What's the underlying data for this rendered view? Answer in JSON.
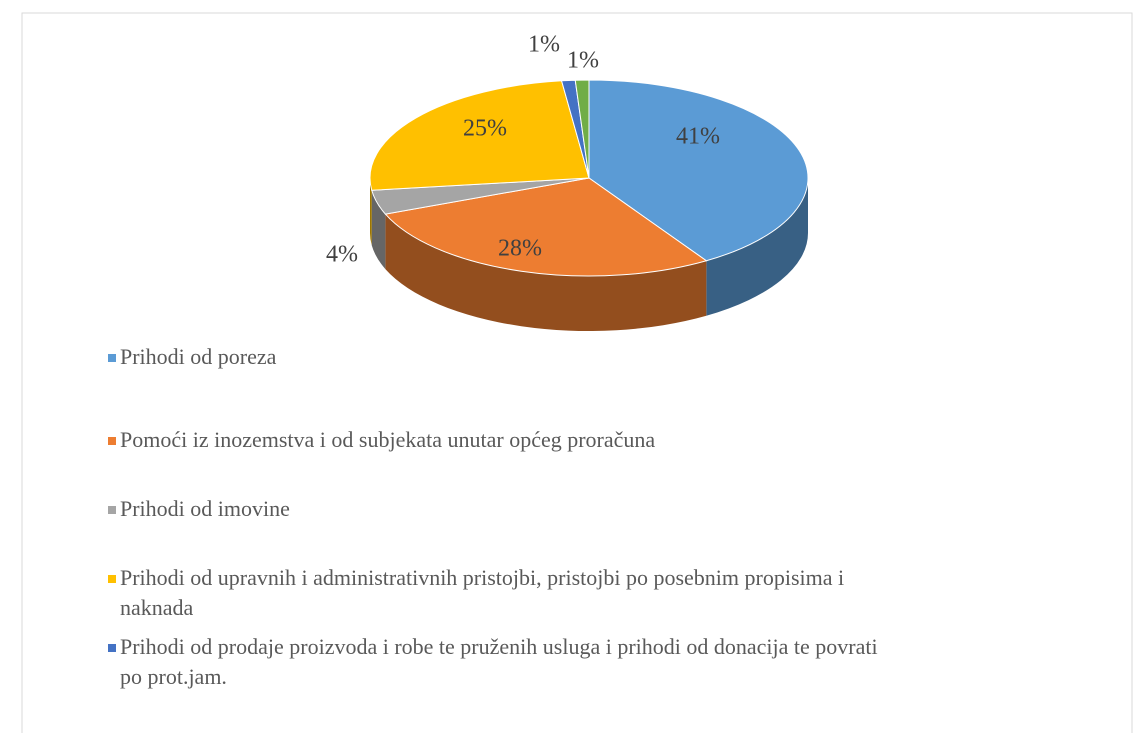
{
  "chart_data": {
    "type": "pie3d",
    "categories": [
      "Prihodi od poreza",
      "Pomoći iz inozemstva i od subjekata unutar općeg proračuna",
      "Prihodi od imovine",
      "Prihodi od upravnih i administrativnih pristojbi, pristojbi po posebnim propisima i naknada",
      "Prihodi od prodaje proizvoda i robe te pruženih usluga i prihodi od donacija te povrati po prot.jam.",
      null
    ],
    "values": [
      41,
      28,
      4,
      25,
      1,
      1
    ],
    "value_labels": [
      "41%",
      "28%",
      "4%",
      "25%",
      "1%",
      "1%"
    ],
    "colors": [
      "#5b9bd5",
      "#ed7d31",
      "#a5a5a5",
      "#ffc000",
      "#4472c4",
      "#70ad47"
    ],
    "legend": "bottom"
  }
}
